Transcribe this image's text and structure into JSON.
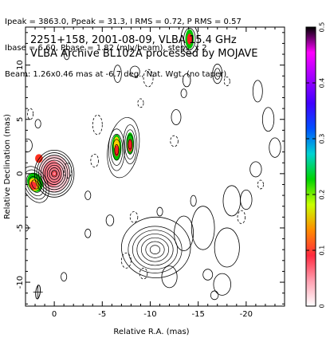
{
  "header": {
    "lines": [
      "Ipeak = 3863.0, Ppeak = 31.3, I RMS = 0.72, P RMS = 0.57",
      "Ibase = 6.60, Pbase = 1.82 (mJy/beam), steps: x 2",
      "Beam: 1.26x0.46 mas at -6.7 deg., Nat. Wgt. (no taper)"
    ]
  },
  "chart_data": {
    "type": "contour",
    "title_lines": [
      "2251+158, 2001-08-09, VLBA 15.4 GHz",
      "VLBA Archive BL102A processed by MOJAVE"
    ],
    "xlabel": "Relative R.A. (mas)",
    "ylabel": "Relative Declination (mas)",
    "xlim": [
      3,
      -24
    ],
    "ylim": [
      -12.2,
      13.5
    ],
    "xticks": [
      0,
      -5,
      -10,
      -15,
      -20
    ],
    "yticks": [
      10,
      5,
      0,
      -5,
      -10
    ],
    "colorbar": {
      "min": 0,
      "max": 0.5,
      "ticks": [
        0,
        0.1,
        0.2,
        0.3,
        0.4,
        0.5
      ],
      "colors": [
        "#ffffff",
        "#ff9fb0",
        "#ff2a40",
        "#ff8c00",
        "#c9ff00",
        "#00d400",
        "#00d2d2",
        "#0050ff",
        "#4000ff",
        "#a000ff",
        "#ff00ff",
        "#000000"
      ]
    },
    "beam": {
      "major_mas": 1.26,
      "minor_mas": 0.46,
      "pa_deg": -6.7
    },
    "core": {
      "x": 0,
      "y": 0
    },
    "jet_features": [
      {
        "x": 2.3,
        "y": -1.2
      },
      {
        "x": -6.5,
        "y": 2.5
      },
      {
        "x": -8.0,
        "y": 3.0
      },
      {
        "x": -14.0,
        "y": 12.5
      },
      {
        "x": -10.5,
        "y": -7.0
      }
    ]
  }
}
